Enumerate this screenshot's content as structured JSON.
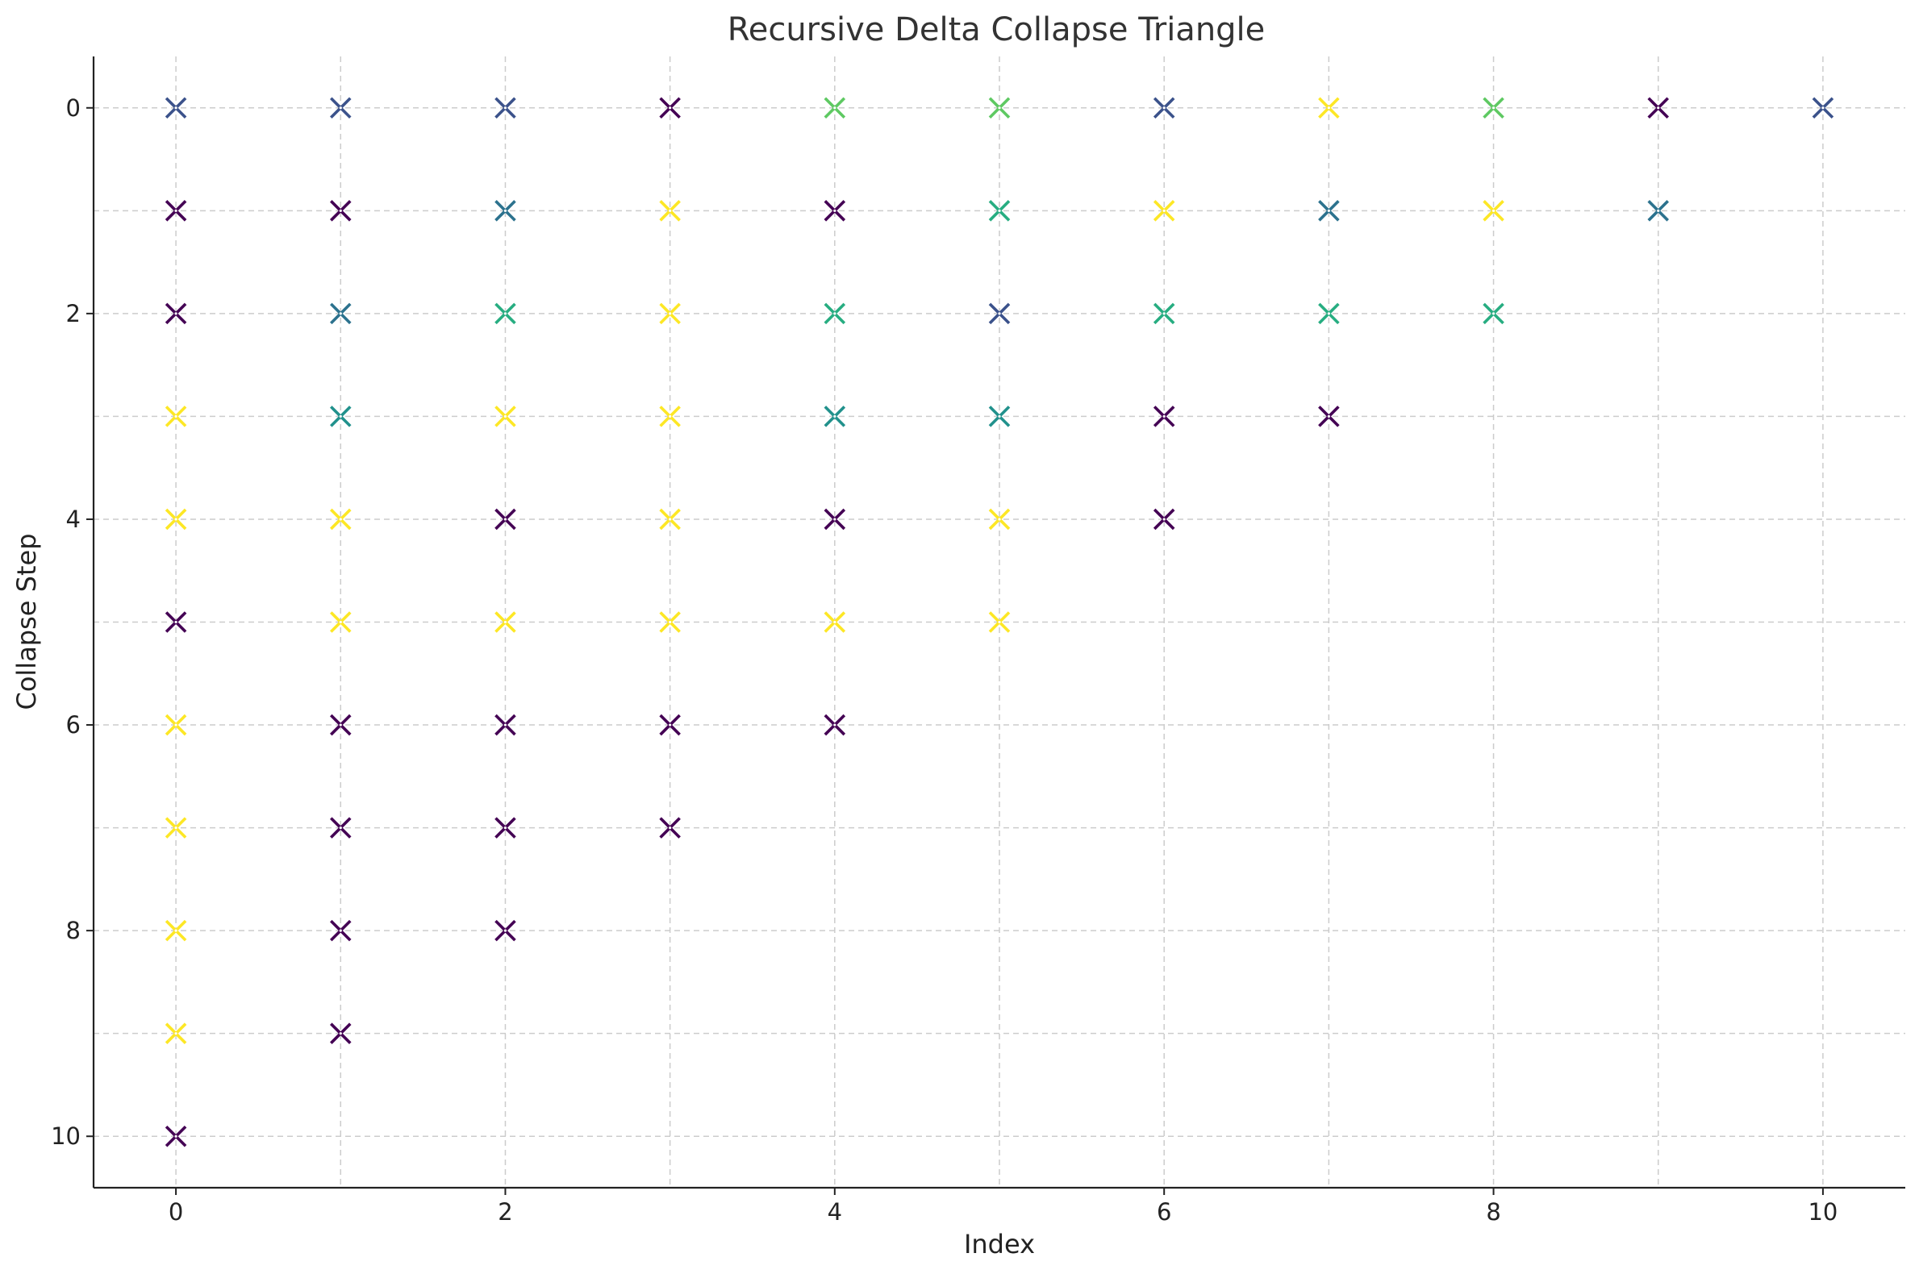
{
  "chart_data": {
    "type": "scatter",
    "title": "Recursive Delta Collapse Triangle",
    "xlabel": "Index",
    "ylabel": "Collapse Step",
    "xlim": [
      -0.5,
      10.5
    ],
    "ylim": [
      10.5,
      -0.5
    ],
    "y_inverted": true,
    "xticks": [
      0,
      2,
      4,
      6,
      8,
      10
    ],
    "yticks": [
      0,
      2,
      4,
      6,
      8,
      10
    ],
    "grid": true,
    "marker": "x",
    "colormap": [
      "#440154",
      "#3b528b",
      "#21918c",
      "#5ec962",
      "#fde725"
    ],
    "rows": [
      {
        "step": 0,
        "colors": [
          "#3b528b",
          "#3b528b",
          "#3b528b",
          "#440154",
          "#5ec962",
          "#5ec962",
          "#3b528b",
          "#fde725",
          "#5ec962",
          "#440154",
          "#3b528b"
        ]
      },
      {
        "step": 1,
        "colors": [
          "#440154",
          "#440154",
          "#2c728e",
          "#fde725",
          "#440154",
          "#27ad81",
          "#fde725",
          "#2c728e",
          "#fde725",
          "#2c728e"
        ]
      },
      {
        "step": 2,
        "colors": [
          "#440154",
          "#2c728e",
          "#27ad81",
          "#fde725",
          "#27ad81",
          "#3b528b",
          "#27ad81",
          "#27ad81",
          "#27ad81"
        ]
      },
      {
        "step": 3,
        "colors": [
          "#fde725",
          "#21918c",
          "#fde725",
          "#fde725",
          "#21918c",
          "#21918c",
          "#440154",
          "#440154"
        ]
      },
      {
        "step": 4,
        "colors": [
          "#fde725",
          "#fde725",
          "#440154",
          "#fde725",
          "#440154",
          "#fde725",
          "#440154"
        ]
      },
      {
        "step": 5,
        "colors": [
          "#440154",
          "#fde725",
          "#fde725",
          "#fde725",
          "#fde725",
          "#fde725"
        ]
      },
      {
        "step": 6,
        "colors": [
          "#fde725",
          "#440154",
          "#440154",
          "#440154",
          "#440154"
        ]
      },
      {
        "step": 7,
        "colors": [
          "#fde725",
          "#440154",
          "#440154",
          "#440154"
        ]
      },
      {
        "step": 8,
        "colors": [
          "#fde725",
          "#440154",
          "#440154"
        ]
      },
      {
        "step": 9,
        "colors": [
          "#fde725",
          "#440154"
        ]
      },
      {
        "step": 10,
        "colors": [
          "#440154"
        ]
      }
    ]
  }
}
